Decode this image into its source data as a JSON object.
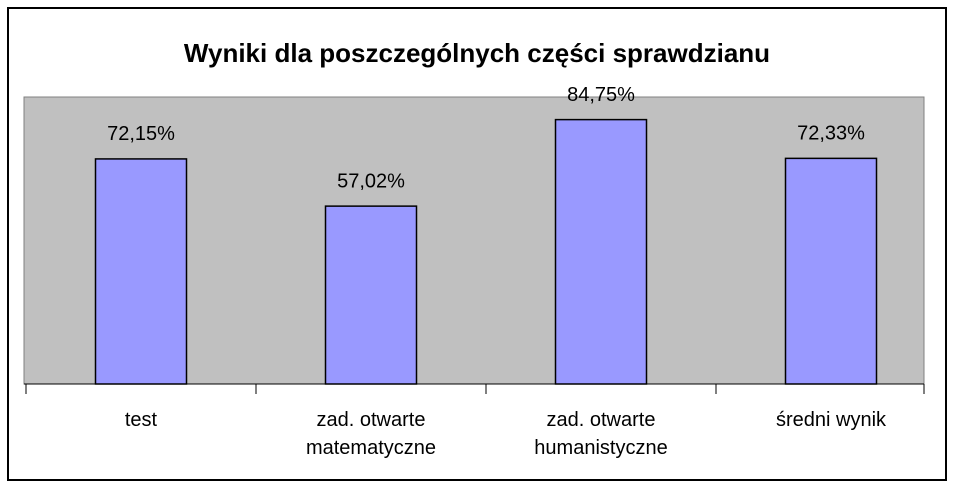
{
  "chart_data": {
    "type": "bar",
    "title": "Wyniki dla poszczególnych części sprawdzianu",
    "categories": [
      "test",
      "zad. otwarte matematyczne",
      "zad. otwarte humanistyczne",
      "średni wynik"
    ],
    "values": [
      72.15,
      57.02,
      84.75,
      72.33
    ],
    "value_labels": [
      "72,15%",
      "57,02%",
      "84,75%",
      "72,33%"
    ],
    "color": "#9999ff",
    "ylim": [
      0,
      92
    ],
    "grid": false
  }
}
